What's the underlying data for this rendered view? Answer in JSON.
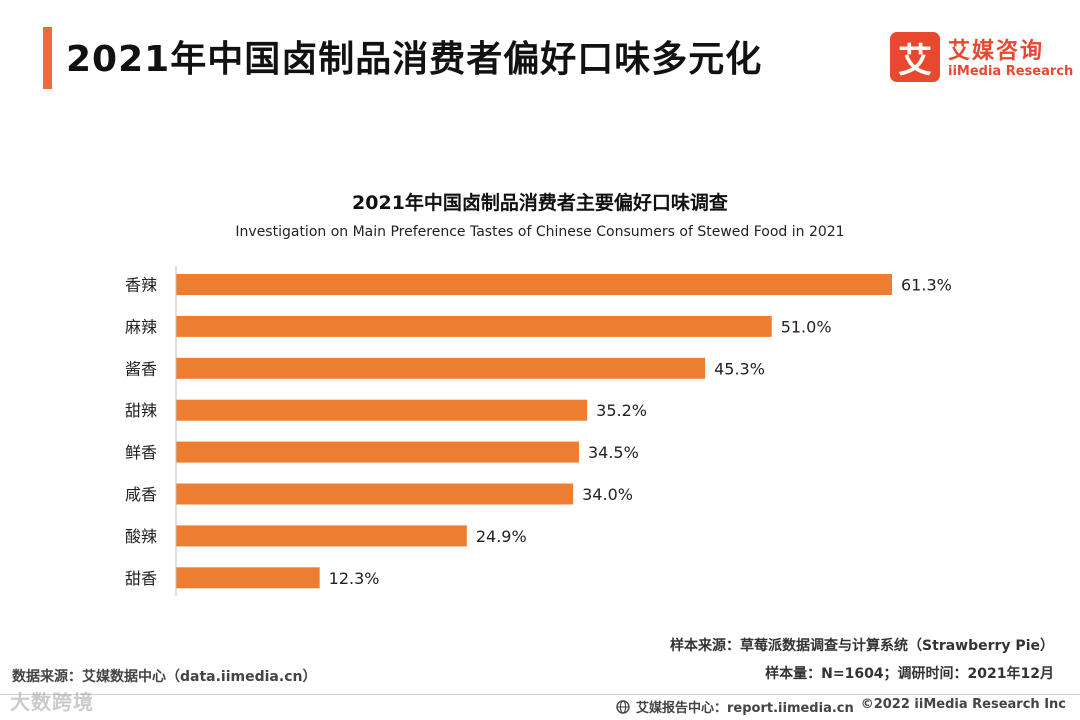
{
  "header": {
    "title": "2021年中国卤制品消费者偏好口味多元化",
    "accent_color": "#ef6a3a"
  },
  "logo": {
    "mark": "艾",
    "name_cn": "艾媒咨询",
    "name_en": "iiMedia Research",
    "color": "#e8482d"
  },
  "chart_data": {
    "type": "bar",
    "orientation": "horizontal",
    "title": "2021年中国卤制品消费者主要偏好口味调查",
    "subtitle": "Investigation on Main Preference Tastes of Chinese Consumers of Stewed Food in 2021",
    "categories": [
      "香辣",
      "麻辣",
      "酱香",
      "甜辣",
      "鲜香",
      "咸香",
      "酸辣",
      "甜香"
    ],
    "values": [
      61.3,
      51.0,
      45.3,
      35.2,
      34.5,
      34.0,
      24.9,
      12.3
    ],
    "labels": [
      "61.3%",
      "51.0%",
      "45.3%",
      "35.2%",
      "34.5%",
      "34.0%",
      "24.9%",
      "12.3%"
    ],
    "unit": "%",
    "xlim": [
      0,
      61.3
    ],
    "bar_color": "#ed7d31",
    "grid": false,
    "legend": "none"
  },
  "footer": {
    "sample_source": "样本来源：草莓派数据调查与计算系统（Strawberry  Pie）",
    "sample_size": "样本量：N=1604；调研时间：2021年12月",
    "data_source": "数据来源：艾媒数据中心（data.iimedia.cn）",
    "report_center": "艾媒报告中心：report.iimedia.cn",
    "copyright": "©2022  iiMedia Research  Inc",
    "watermark": "大数跨境"
  }
}
